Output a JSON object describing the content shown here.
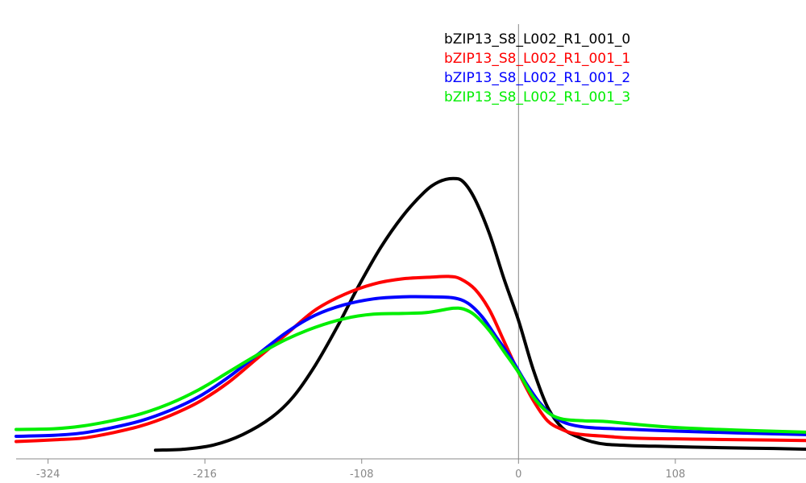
{
  "chart_data": {
    "type": "line",
    "title": "",
    "xlabel": "",
    "ylabel": "",
    "xlim": [
      -346,
      198
    ],
    "ylim": [
      0,
      1
    ],
    "x_ticks": [
      -324,
      -216,
      -108,
      0,
      108
    ],
    "vertical_reference_line_x": 0,
    "legend_placement": "top-right",
    "grid": false,
    "series": [
      {
        "name": "bZIP13_S8_L002_R1_001_0",
        "color": "#000000",
        "points": [
          [
            -250,
            0.025
          ],
          [
            -230,
            0.028
          ],
          [
            -210,
            0.04
          ],
          [
            -190,
            0.07
          ],
          [
            -170,
            0.12
          ],
          [
            -155,
            0.18
          ],
          [
            -140,
            0.27
          ],
          [
            -125,
            0.38
          ],
          [
            -110,
            0.5
          ],
          [
            -95,
            0.61
          ],
          [
            -80,
            0.7
          ],
          [
            -65,
            0.77
          ],
          [
            -55,
            0.8
          ],
          [
            -45,
            0.81
          ],
          [
            -38,
            0.8
          ],
          [
            -30,
            0.75
          ],
          [
            -20,
            0.65
          ],
          [
            -10,
            0.52
          ],
          [
            0,
            0.4
          ],
          [
            10,
            0.26
          ],
          [
            20,
            0.15
          ],
          [
            30,
            0.09
          ],
          [
            40,
            0.065
          ],
          [
            50,
            0.05
          ],
          [
            60,
            0.042
          ],
          [
            80,
            0.038
          ],
          [
            100,
            0.036
          ],
          [
            130,
            0.033
          ],
          [
            160,
            0.031
          ],
          [
            198,
            0.028
          ]
        ]
      },
      {
        "name": "bZIP13_S8_L002_R1_001_1",
        "color": "#ff0000",
        "points": [
          [
            -346,
            0.05
          ],
          [
            -320,
            0.055
          ],
          [
            -300,
            0.06
          ],
          [
            -280,
            0.075
          ],
          [
            -260,
            0.095
          ],
          [
            -240,
            0.125
          ],
          [
            -220,
            0.165
          ],
          [
            -200,
            0.22
          ],
          [
            -180,
            0.29
          ],
          [
            -160,
            0.36
          ],
          [
            -140,
            0.43
          ],
          [
            -120,
            0.475
          ],
          [
            -100,
            0.505
          ],
          [
            -80,
            0.52
          ],
          [
            -60,
            0.525
          ],
          [
            -48,
            0.527
          ],
          [
            -40,
            0.52
          ],
          [
            -30,
            0.49
          ],
          [
            -20,
            0.43
          ],
          [
            -10,
            0.34
          ],
          [
            0,
            0.25
          ],
          [
            10,
            0.17
          ],
          [
            20,
            0.11
          ],
          [
            30,
            0.085
          ],
          [
            40,
            0.072
          ],
          [
            60,
            0.065
          ],
          [
            80,
            0.06
          ],
          [
            120,
            0.057
          ],
          [
            160,
            0.055
          ],
          [
            198,
            0.053
          ]
        ]
      },
      {
        "name": "bZIP13_S8_L002_R1_001_2",
        "color": "#0000ff",
        "points": [
          [
            -346,
            0.065
          ],
          [
            -320,
            0.068
          ],
          [
            -300,
            0.075
          ],
          [
            -280,
            0.09
          ],
          [
            -260,
            0.11
          ],
          [
            -240,
            0.14
          ],
          [
            -220,
            0.18
          ],
          [
            -200,
            0.235
          ],
          [
            -180,
            0.3
          ],
          [
            -160,
            0.365
          ],
          [
            -140,
            0.415
          ],
          [
            -120,
            0.445
          ],
          [
            -100,
            0.462
          ],
          [
            -80,
            0.468
          ],
          [
            -60,
            0.468
          ],
          [
            -45,
            0.465
          ],
          [
            -35,
            0.45
          ],
          [
            -25,
            0.41
          ],
          [
            -15,
            0.35
          ],
          [
            -5,
            0.29
          ],
          [
            5,
            0.22
          ],
          [
            15,
            0.16
          ],
          [
            25,
            0.12
          ],
          [
            35,
            0.1
          ],
          [
            50,
            0.09
          ],
          [
            80,
            0.085
          ],
          [
            110,
            0.08
          ],
          [
            150,
            0.075
          ],
          [
            198,
            0.07
          ]
        ]
      },
      {
        "name": "bZIP13_S8_L002_R1_001_3",
        "color": "#00ee00",
        "points": [
          [
            -346,
            0.085
          ],
          [
            -320,
            0.087
          ],
          [
            -300,
            0.095
          ],
          [
            -280,
            0.11
          ],
          [
            -260,
            0.13
          ],
          [
            -240,
            0.16
          ],
          [
            -220,
            0.2
          ],
          [
            -200,
            0.25
          ],
          [
            -180,
            0.3
          ],
          [
            -160,
            0.345
          ],
          [
            -140,
            0.38
          ],
          [
            -120,
            0.405
          ],
          [
            -100,
            0.418
          ],
          [
            -80,
            0.42
          ],
          [
            -65,
            0.422
          ],
          [
            -55,
            0.428
          ],
          [
            -45,
            0.435
          ],
          [
            -38,
            0.433
          ],
          [
            -30,
            0.415
          ],
          [
            -20,
            0.37
          ],
          [
            -10,
            0.31
          ],
          [
            0,
            0.25
          ],
          [
            10,
            0.18
          ],
          [
            20,
            0.135
          ],
          [
            30,
            0.115
          ],
          [
            45,
            0.11
          ],
          [
            60,
            0.108
          ],
          [
            80,
            0.1
          ],
          [
            110,
            0.09
          ],
          [
            150,
            0.083
          ],
          [
            198,
            0.077
          ]
        ]
      }
    ]
  }
}
